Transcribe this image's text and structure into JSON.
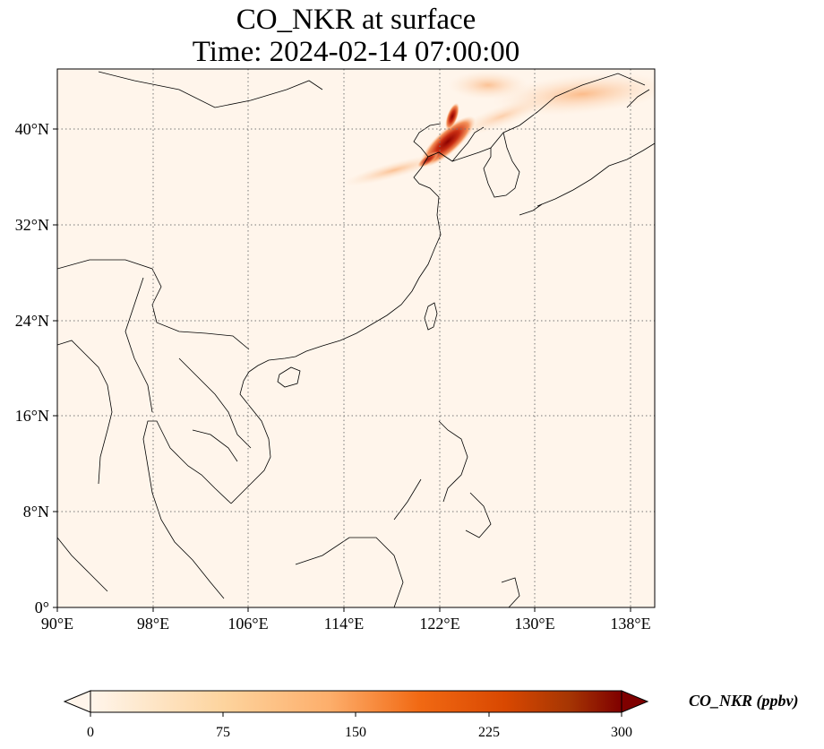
{
  "title": {
    "line1": "CO_NKR at surface",
    "line2": "Time: 2024-02-14 07:00:00"
  },
  "map": {
    "lon_range": [
      90,
      140
    ],
    "lat_range": [
      0,
      45
    ],
    "x_ticks": [
      "90°E",
      "98°E",
      "106°E",
      "114°E",
      "122°E",
      "130°E",
      "138°E"
    ],
    "y_ticks": [
      "0°",
      "8°N",
      "16°N",
      "24°N",
      "32°N",
      "40°N"
    ],
    "gridlines": "dotted",
    "background_color": "#fff5eb"
  },
  "colorbar": {
    "label": "CO_NKR (ppbv)",
    "ticks": [
      "0",
      "75",
      "150",
      "225",
      "300"
    ],
    "range": [
      0,
      300
    ],
    "colormap": [
      "#fff5eb",
      "#fdd49e",
      "#fdae6b",
      "#f16913",
      "#d94801",
      "#a63603",
      "#7f0000"
    ],
    "extend": "both"
  }
}
